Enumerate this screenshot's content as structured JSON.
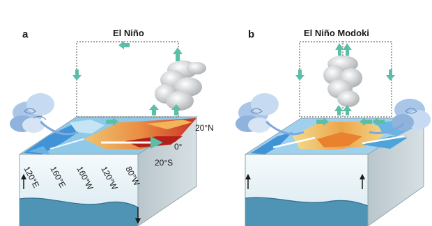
{
  "panels": [
    {
      "letter": "a",
      "title": "El Niño",
      "lat_labels": [
        "20°N",
        "0°",
        "20°S"
      ],
      "lon_labels": [
        "120°E",
        "160°E",
        "160°W",
        "120°W",
        "80°W"
      ]
    },
    {
      "letter": "b",
      "title": "El Niño Modoki",
      "lat_labels": [],
      "lon_labels": []
    }
  ],
  "colors": {
    "ocean_side": "#e9f3f7",
    "thermocline_deep": "#4f93b5",
    "warm_anomaly": "#e2531e",
    "cool_anomaly": "#4ea3da",
    "arrow_green": "#5bbfa8",
    "cloud": "#c9cbcc"
  }
}
